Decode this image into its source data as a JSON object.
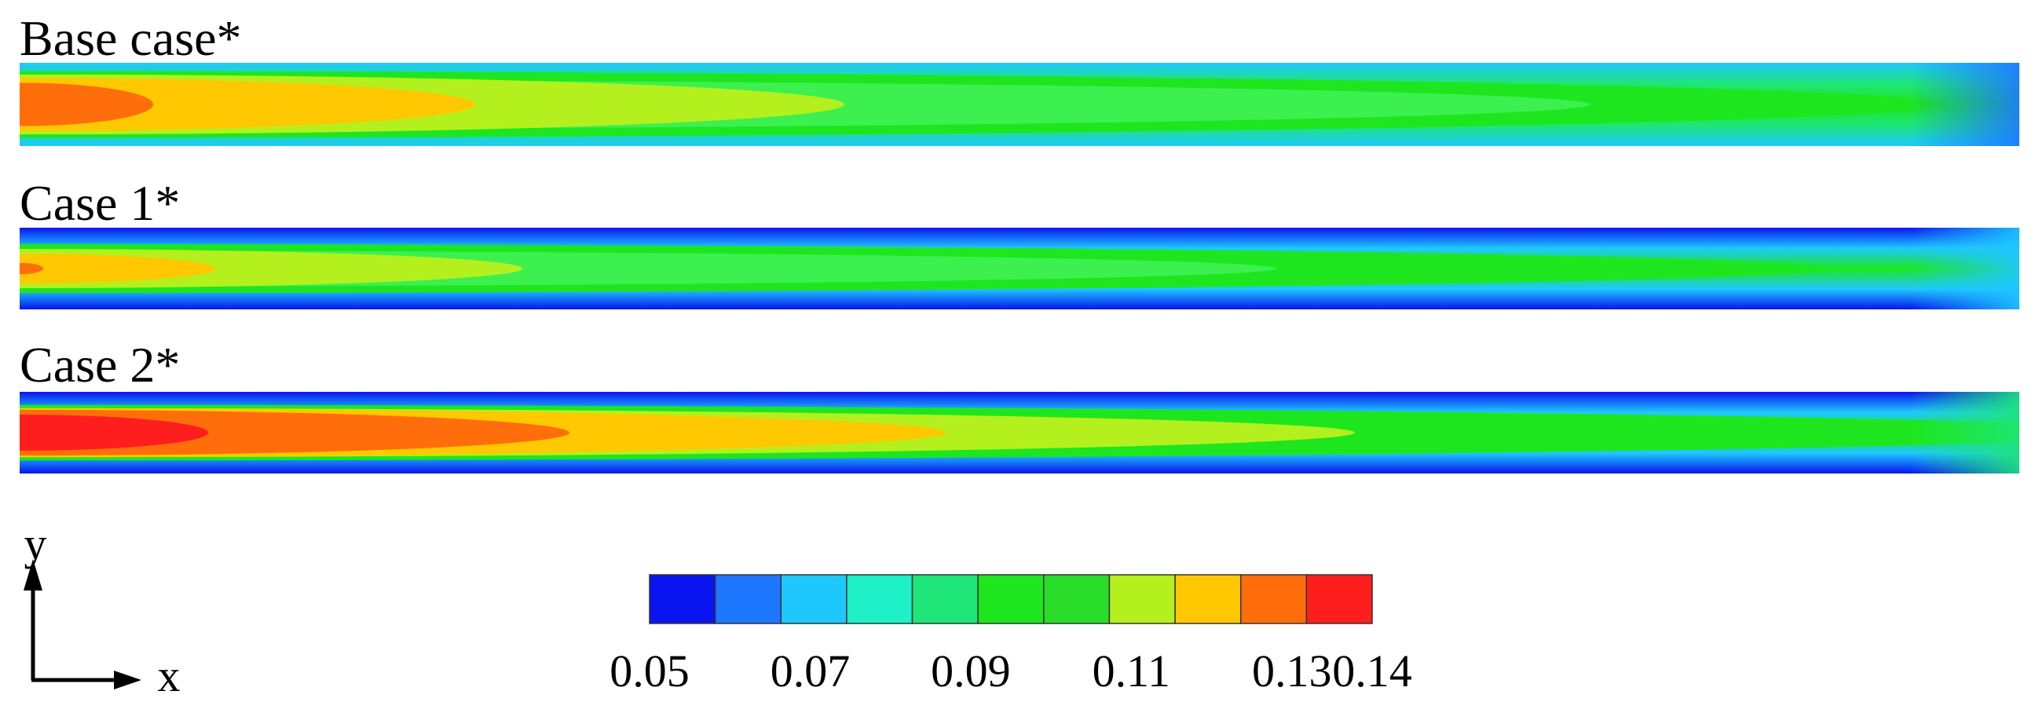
{
  "panels": [
    {
      "label": "Base case*"
    },
    {
      "label": "Case 1*"
    },
    {
      "label": "Case 2*"
    }
  ],
  "colorbar": {
    "colors": [
      "#0a14f0",
      "#1e78ff",
      "#1ec8ff",
      "#1ef0c8",
      "#1ee678",
      "#1ee61e",
      "#28dc28",
      "#b4f01e",
      "#ffc800",
      "#ff6e0a",
      "#ff1e1e"
    ],
    "lim": [
      0.05,
      0.14
    ],
    "ticks": [
      0.05,
      0.07,
      0.09,
      0.11,
      0.13,
      0.14
    ]
  },
  "axes": {
    "y": "y",
    "x": "x"
  }
}
